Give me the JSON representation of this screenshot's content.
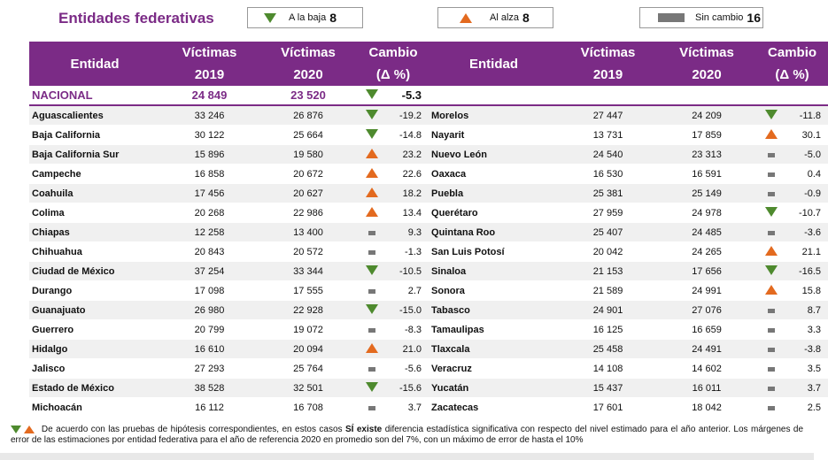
{
  "legend": {
    "title": "Entidades federativas",
    "down_label": "A la baja",
    "down_count": "8",
    "up_label": "Al alza",
    "up_count": "8",
    "same_label": "Sin cambio",
    "same_count": "16"
  },
  "headers": {
    "entidad": "Entidad",
    "victimas": "Víctimas",
    "y2019": "2019",
    "y2020": "2020",
    "cambio": "Cambio",
    "delta": "(Δ %)"
  },
  "national": {
    "name": "NACIONAL",
    "v2019": "24 849",
    "v2020": "23 520",
    "change": "-5.3",
    "ind": "down"
  },
  "left_rows": [
    {
      "name": "Aguascalientes",
      "v2019": "33 246",
      "v2020": "26 876",
      "change": "-19.2",
      "ind": "down"
    },
    {
      "name": "Baja California",
      "v2019": "30 122",
      "v2020": "25 664",
      "change": "-14.8",
      "ind": "down"
    },
    {
      "name": "Baja California Sur",
      "v2019": "15 896",
      "v2020": "19 580",
      "change": "23.2",
      "ind": "up"
    },
    {
      "name": "Campeche",
      "v2019": "16 858",
      "v2020": "20 672",
      "change": "22.6",
      "ind": "up"
    },
    {
      "name": "Coahuila",
      "v2019": "17 456",
      "v2020": "20 627",
      "change": "18.2",
      "ind": "up"
    },
    {
      "name": "Colima",
      "v2019": "20 268",
      "v2020": "22 986",
      "change": "13.4",
      "ind": "up"
    },
    {
      "name": "Chiapas",
      "v2019": "12 258",
      "v2020": "13 400",
      "change": "9.3",
      "ind": "same"
    },
    {
      "name": "Chihuahua",
      "v2019": "20 843",
      "v2020": "20 572",
      "change": "-1.3",
      "ind": "same"
    },
    {
      "name": "Ciudad de México",
      "v2019": "37 254",
      "v2020": "33 344",
      "change": "-10.5",
      "ind": "down"
    },
    {
      "name": "Durango",
      "v2019": "17 098",
      "v2020": "17 555",
      "change": "2.7",
      "ind": "same"
    },
    {
      "name": "Guanajuato",
      "v2019": "26 980",
      "v2020": "22 928",
      "change": "-15.0",
      "ind": "down"
    },
    {
      "name": "Guerrero",
      "v2019": "20 799",
      "v2020": "19 072",
      "change": "-8.3",
      "ind": "same"
    },
    {
      "name": "Hidalgo",
      "v2019": "16 610",
      "v2020": "20 094",
      "change": "21.0",
      "ind": "up"
    },
    {
      "name": "Jalisco",
      "v2019": "27 293",
      "v2020": "25 764",
      "change": "-5.6",
      "ind": "same"
    },
    {
      "name": "Estado de México",
      "v2019": "38 528",
      "v2020": "32 501",
      "change": "-15.6",
      "ind": "down"
    },
    {
      "name": "Michoacán",
      "v2019": "16 112",
      "v2020": "16 708",
      "change": "3.7",
      "ind": "same"
    }
  ],
  "right_rows": [
    {
      "name": "Morelos",
      "v2019": "27 447",
      "v2020": "24 209",
      "change": "-11.8",
      "ind": "down"
    },
    {
      "name": "Nayarit",
      "v2019": "13 731",
      "v2020": "17 859",
      "change": "30.1",
      "ind": "up"
    },
    {
      "name": "Nuevo León",
      "v2019": "24 540",
      "v2020": "23 313",
      "change": "-5.0",
      "ind": "same"
    },
    {
      "name": "Oaxaca",
      "v2019": "16 530",
      "v2020": "16 591",
      "change": "0.4",
      "ind": "same"
    },
    {
      "name": "Puebla",
      "v2019": "25 381",
      "v2020": "25 149",
      "change": "-0.9",
      "ind": "same"
    },
    {
      "name": "Querétaro",
      "v2019": "27 959",
      "v2020": "24 978",
      "change": "-10.7",
      "ind": "down"
    },
    {
      "name": "Quintana Roo",
      "v2019": "25 407",
      "v2020": "24 485",
      "change": "-3.6",
      "ind": "same"
    },
    {
      "name": "San Luis Potosí",
      "v2019": "20 042",
      "v2020": "24 265",
      "change": "21.1",
      "ind": "up"
    },
    {
      "name": "Sinaloa",
      "v2019": "21 153",
      "v2020": "17 656",
      "change": "-16.5",
      "ind": "down"
    },
    {
      "name": "Sonora",
      "v2019": "21 589",
      "v2020": "24 991",
      "change": "15.8",
      "ind": "up"
    },
    {
      "name": "Tabasco",
      "v2019": "24 901",
      "v2020": "27 076",
      "change": "8.7",
      "ind": "same"
    },
    {
      "name": "Tamaulipas",
      "v2019": "16 125",
      "v2020": "16 659",
      "change": "3.3",
      "ind": "same"
    },
    {
      "name": "Tlaxcala",
      "v2019": "25 458",
      "v2020": "24 491",
      "change": "-3.8",
      "ind": "same"
    },
    {
      "name": "Veracruz",
      "v2019": "14 108",
      "v2020": "14 602",
      "change": "3.5",
      "ind": "same"
    },
    {
      "name": "Yucatán",
      "v2019": "15 437",
      "v2020": "16 011",
      "change": "3.7",
      "ind": "same"
    },
    {
      "name": "Zacatecas",
      "v2019": "17 601",
      "v2020": "18 042",
      "change": "2.5",
      "ind": "same"
    }
  ],
  "note": {
    "part1": "De acuerdo con las pruebas de hipótesis correspondientes, en estos casos",
    "emph": "SÍ existe",
    "part2": "diferencia estadística significativa con respecto del nivel estimado para el año anterior. Los márgenes de error de las estimaciones por entidad federativa para el año de referencia 2020 en promedio son del 7%, con un máximo de error de hasta el 10%"
  },
  "colors": {
    "purple": "#7b2b86",
    "green": "#4e8a2e",
    "orange": "#e36a1f",
    "gray": "#777777"
  },
  "icons": {
    "down": "triangle-down-icon",
    "up": "triangle-up-icon",
    "same": "dash-icon"
  }
}
